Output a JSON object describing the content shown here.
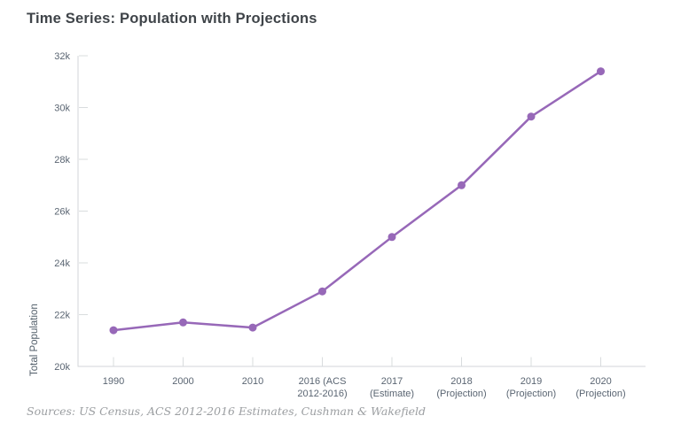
{
  "title": "Time Series: Population with Projections",
  "source_note": "Sources: US Census, ACS 2012-2016 Estimates, Cushman & Wakefield",
  "colors": {
    "line": "#9768b8",
    "marker": "#9768b8",
    "axis_line": "#d3d6d9",
    "tick_mark": "#d9dcde",
    "tick_text": "#5a6572",
    "axis_label_text": "#505c68",
    "title_text": "#3f4449",
    "source_text": "#9b9ea1",
    "background": "#ffffff"
  },
  "chart_data": {
    "type": "line",
    "title": "Time Series: Population with Projections",
    "xlabel": "",
    "ylabel": "Total Population",
    "categories": [
      "1990",
      "2000",
      "2010",
      "2016 (ACS 2012-2016)",
      "2017 (Estimate)",
      "2018 (Projection)",
      "2019 (Projection)",
      "2020 (Projection)"
    ],
    "category_label_lines": [
      [
        "1990"
      ],
      [
        "2000"
      ],
      [
        "2010"
      ],
      [
        "2016 (ACS",
        "2012-2016)"
      ],
      [
        "2017",
        "(Estimate)"
      ],
      [
        "2018",
        "(Projection)"
      ],
      [
        "2019",
        "(Projection)"
      ],
      [
        "2020",
        "(Projection)"
      ]
    ],
    "series": [
      {
        "name": "Total Population",
        "values": [
          21400,
          21700,
          21500,
          22900,
          25000,
          27000,
          29650,
          31400
        ]
      }
    ],
    "ylim": [
      20000,
      32000
    ],
    "ytick_step": 2000,
    "ytick_labels": [
      "20k",
      "22k",
      "24k",
      "26k",
      "28k",
      "30k",
      "32k"
    ],
    "grid": false,
    "legend": "none",
    "marker": "circle"
  }
}
